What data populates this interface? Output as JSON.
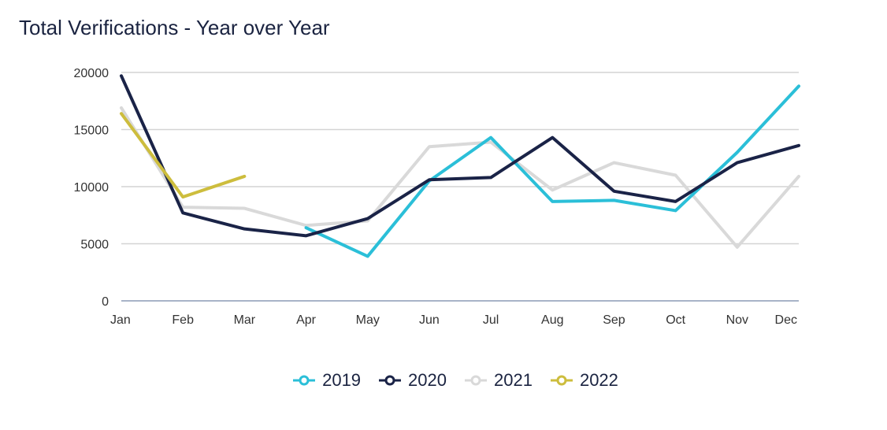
{
  "chart_data": {
    "type": "line",
    "title": "Total Verifications - Year over Year",
    "categories": [
      "Jan",
      "Feb",
      "Mar",
      "Apr",
      "May",
      "Jun",
      "Jul",
      "Aug",
      "Sep",
      "Oct",
      "Nov",
      "Dec"
    ],
    "yticks": [
      "0",
      "5000",
      "10000",
      "15000",
      "20000"
    ],
    "ylim": [
      0,
      20000
    ],
    "grid": true,
    "legend_position": "bottom",
    "series": [
      {
        "name": "2019",
        "color": "#2bbfd8",
        "values": [
          null,
          null,
          null,
          6400,
          3900,
          10500,
          14300,
          8700,
          8800,
          7900,
          13000,
          18800
        ]
      },
      {
        "name": "2020",
        "color": "#1a2347",
        "values": [
          19700,
          7700,
          6300,
          5700,
          7200,
          10600,
          10800,
          14300,
          9600,
          8700,
          12100,
          13600
        ]
      },
      {
        "name": "2021",
        "color": "#d9d9d9",
        "values": [
          16900,
          8200,
          8100,
          6600,
          7000,
          13500,
          13900,
          9700,
          12100,
          11000,
          4700,
          10900
        ]
      },
      {
        "name": "2022",
        "color": "#cdbd3d",
        "values": [
          16400,
          9100,
          10900,
          null,
          null,
          null,
          null,
          null,
          null,
          null,
          null,
          null
        ]
      }
    ]
  }
}
